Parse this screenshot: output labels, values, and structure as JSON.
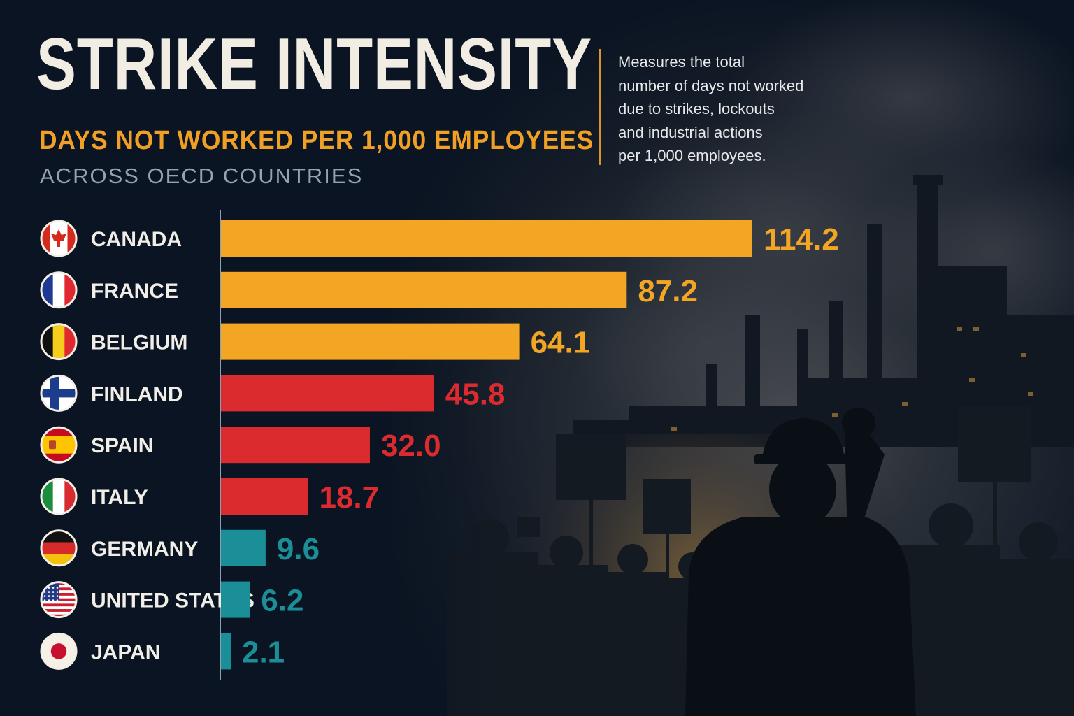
{
  "title": "STRIKE INTENSITY",
  "subtitle": "DAYS NOT WORKED PER 1,000 EMPLOYEES",
  "tagline": "ACROSS OECD COUNTRIES",
  "description_lines": [
    "Measures the total",
    "number of days not worked",
    "due to strikes, lockouts",
    "and industrial actions",
    "per 1,000 employees."
  ],
  "colors": {
    "high": "#f2a623",
    "mid": "#dc2b2f",
    "low": "#1b8f97",
    "background": "#0b1422"
  },
  "chart_data": {
    "type": "bar",
    "orientation": "horizontal",
    "categories": [
      "CANADA",
      "FRANCE",
      "BELGIUM",
      "FINLAND",
      "SPAIN",
      "ITALY",
      "GERMANY",
      "UNITED STATES",
      "JAPAN"
    ],
    "values": [
      114.2,
      87.2,
      64.1,
      45.8,
      32.0,
      18.7,
      9.6,
      6.2,
      2.1
    ],
    "value_labels": [
      "114.2",
      "87.2",
      "64.1",
      "45.8",
      "32.0",
      "18.7",
      "9.6",
      "6.2",
      "2.1"
    ],
    "bar_color_groups": [
      "high",
      "high",
      "high",
      "mid",
      "mid",
      "mid",
      "low",
      "low",
      "low"
    ],
    "flags": [
      "canada-flag-icon",
      "france-flag-icon",
      "belgium-flag-icon",
      "finland-flag-icon",
      "spain-flag-icon",
      "italy-flag-icon",
      "germany-flag-icon",
      "united-states-flag-icon",
      "japan-flag-icon"
    ],
    "xlim": [
      0,
      114.2
    ],
    "grid": false,
    "title": "STRIKE INTENSITY",
    "xlabel": "",
    "ylabel": ""
  }
}
